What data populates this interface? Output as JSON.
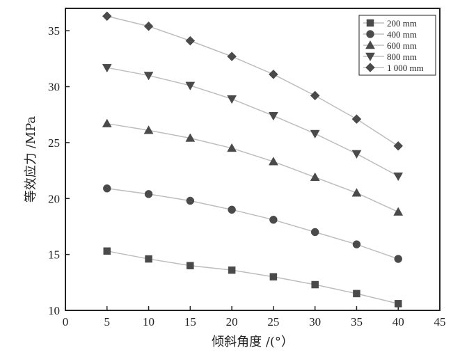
{
  "chart_data": {
    "type": "line",
    "xlabel": "倾斜角度 /(°）",
    "ylabel": "等效应力 /MPa",
    "xlim": [
      0,
      45
    ],
    "ylim": [
      10,
      37
    ],
    "x_ticks": [
      0,
      5,
      10,
      15,
      20,
      25,
      30,
      35,
      40,
      45
    ],
    "y_ticks": [
      10,
      15,
      20,
      25,
      30,
      35
    ],
    "grid": false,
    "legend_position": "top-right",
    "x": [
      5,
      10,
      15,
      20,
      25,
      30,
      35,
      40
    ],
    "series": [
      {
        "name": "200 mm",
        "marker": "square",
        "values": [
          15.3,
          14.6,
          14.0,
          13.6,
          13.0,
          12.3,
          11.5,
          10.6
        ]
      },
      {
        "name": "400 mm",
        "marker": "circle",
        "values": [
          20.9,
          20.4,
          19.8,
          19.0,
          18.1,
          17.0,
          15.9,
          14.6
        ]
      },
      {
        "name": "600 mm",
        "marker": "triangle-up",
        "values": [
          26.7,
          26.1,
          25.4,
          24.5,
          23.3,
          21.9,
          20.5,
          18.8
        ]
      },
      {
        "name": "800 mm",
        "marker": "triangle-down",
        "values": [
          31.7,
          31.0,
          30.1,
          28.9,
          27.4,
          25.8,
          24.0,
          22.0
        ]
      },
      {
        "name": "1 000 mm",
        "marker": "diamond",
        "values": [
          36.3,
          35.4,
          34.1,
          32.7,
          31.1,
          29.2,
          27.1,
          24.7
        ]
      }
    ],
    "colors": {
      "marker": "#4a4a4a",
      "line": "#bdbdbd",
      "axis": "#222222"
    }
  }
}
